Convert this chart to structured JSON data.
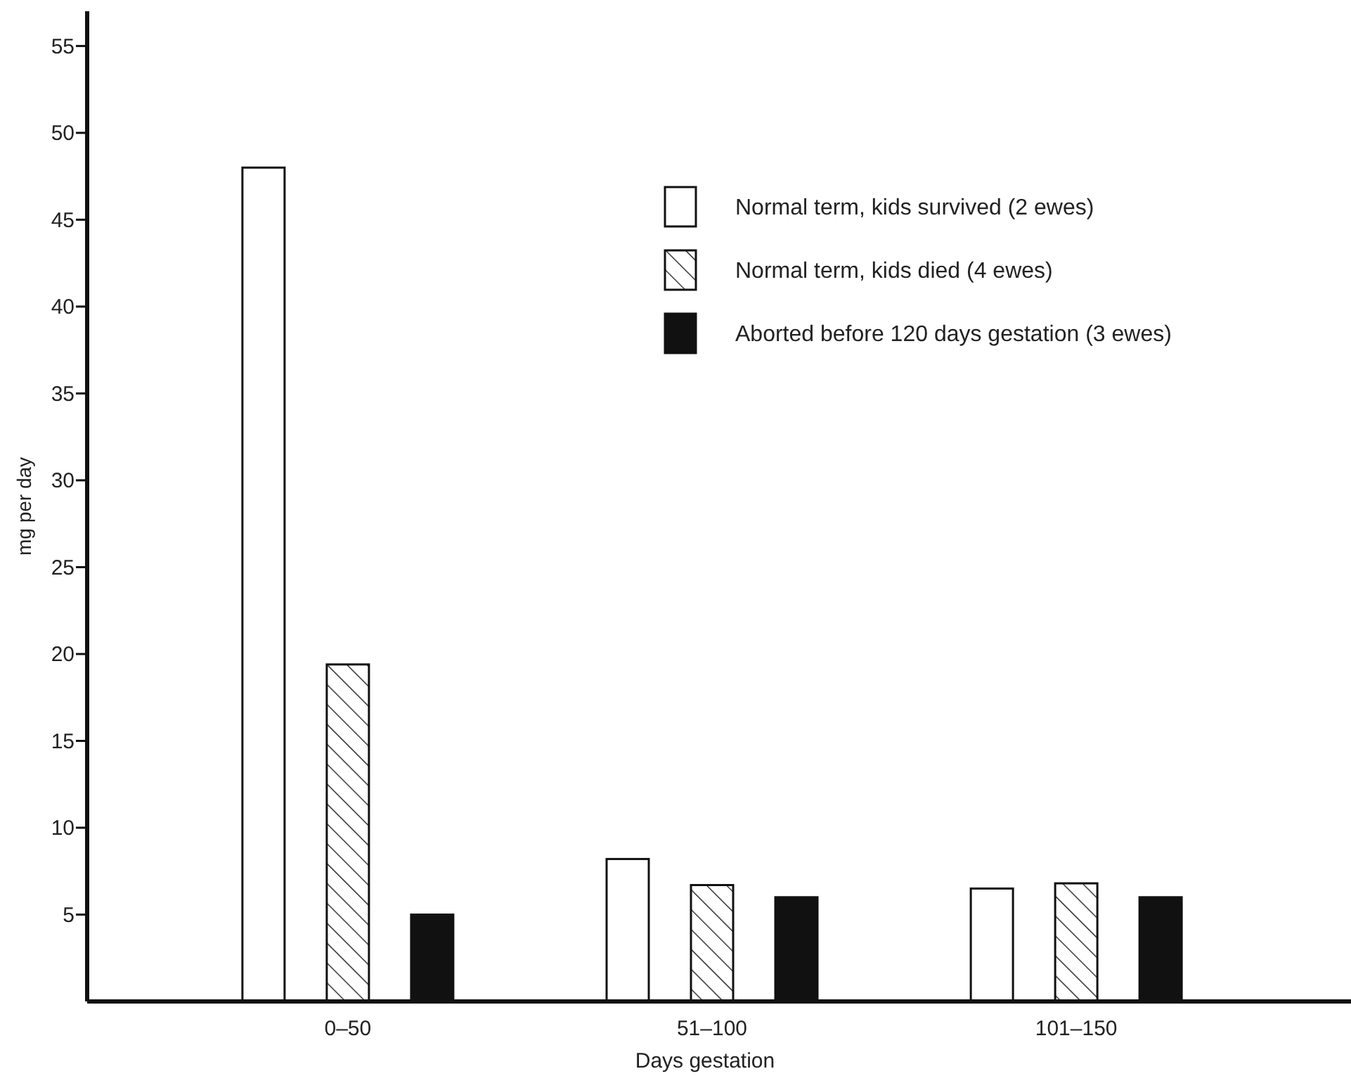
{
  "chart_data": {
    "type": "bar",
    "xlabel": "Days gestation",
    "ylabel": "mg per day",
    "categories": [
      "0–50",
      "51–100",
      "101–150"
    ],
    "series": [
      {
        "name": "Normal term, kids survived (2 ewes)",
        "color": "#ffffff",
        "values": [
          48,
          8.2,
          6.5
        ]
      },
      {
        "name": "Normal term, kids died (4 ewes)",
        "color": "#111111",
        "values": [
          19.4,
          6.7,
          6.8
        ]
      },
      {
        "name": "Aborted before 120 days gestation (3 ewes)",
        "color": "#111111",
        "values": [
          5,
          6,
          6
        ]
      }
    ],
    "ylim": [
      0,
      57
    ],
    "yticks": [
      5,
      10,
      15,
      20,
      25,
      30,
      35,
      40,
      45,
      50,
      55
    ],
    "legend": "top right",
    "grid": false
  }
}
